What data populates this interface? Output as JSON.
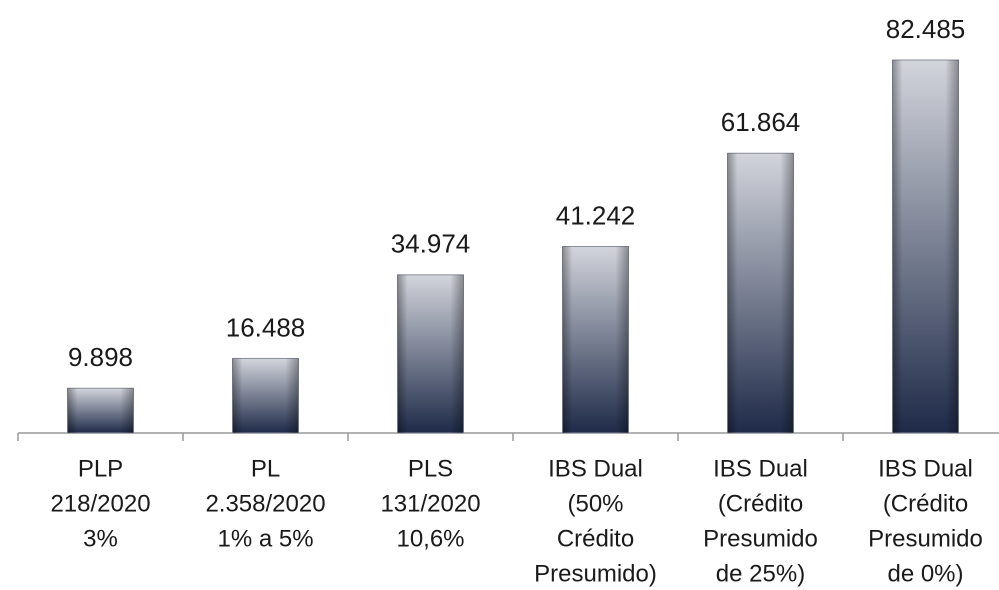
{
  "chart_data": {
    "type": "bar",
    "categories": [
      [
        "PLP",
        "218/2020",
        "3%"
      ],
      [
        "PL",
        "2.358/2020",
        "1% a 5%"
      ],
      [
        "PLS",
        "131/2020",
        "10,6%"
      ],
      [
        "IBS Dual",
        "(50%",
        "Crédito",
        "Presumido)"
      ],
      [
        "IBS Dual",
        "(Crédito",
        "Presumido",
        "de 25%)"
      ],
      [
        "IBS Dual",
        "(Crédito",
        "Presumido",
        "de 0%)"
      ]
    ],
    "values": [
      9898,
      16488,
      34974,
      41242,
      61864,
      82485
    ],
    "value_labels": [
      "9.898",
      "16.488",
      "34.974",
      "41.242",
      "61.864",
      "82.485"
    ],
    "color": [
      "#d3d5dc",
      "#1e2a48"
    ]
  }
}
